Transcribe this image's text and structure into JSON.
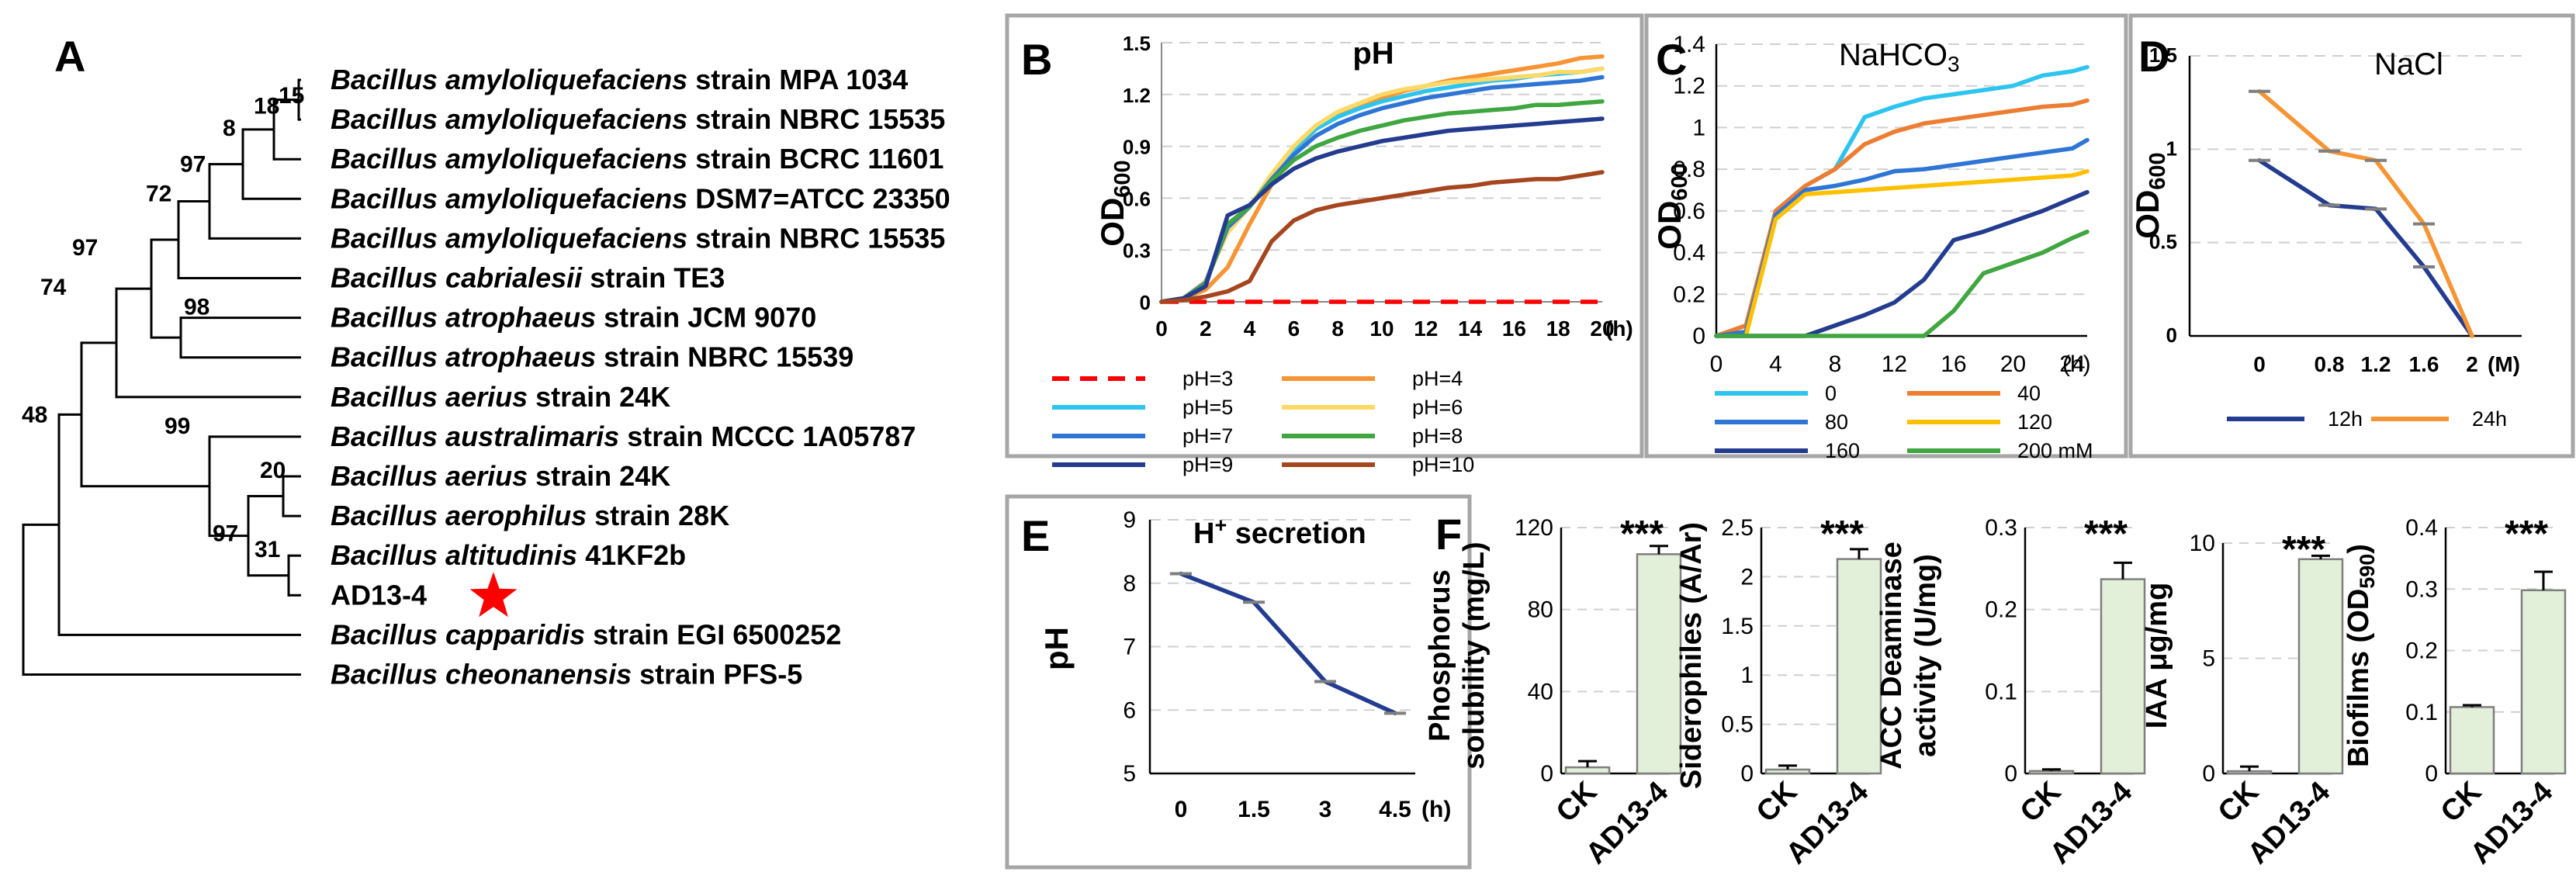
{
  "chart_data": [
    {
      "panel": "A",
      "type": "tree",
      "title": "Phylogenetic tree",
      "leaves": [
        {
          "italic": "Bacillus amyloliquefaciens",
          "rest": " strain MPA 1034"
        },
        {
          "italic": "Bacillus amyloliquefaciens",
          "rest": " strain NBRC 15535"
        },
        {
          "italic": "Bacillus amyloliquefaciens",
          "rest": " strain BCRC 11601"
        },
        {
          "italic": "Bacillus amyloliquefaciens",
          "rest": " DSM7=ATCC 23350"
        },
        {
          "italic": "Bacillus amyloliquefaciens",
          "rest": " strain NBRC 15535"
        },
        {
          "italic": "Bacillus cabrialesii",
          "rest": " strain TE3"
        },
        {
          "italic": "Bacillus atrophaeus",
          "rest": " strain JCM 9070"
        },
        {
          "italic": "Bacillus atrophaeus",
          "rest": " strain NBRC 15539"
        },
        {
          "italic": "Bacillus aerius",
          "rest": " strain 24K"
        },
        {
          "italic": "Bacillus australimaris",
          "rest": " strain MCCC 1A05787"
        },
        {
          "italic": "Bacillus aerius",
          "rest": " strain 24K"
        },
        {
          "italic": "Bacillus aerophilus",
          "rest": " strain 28K"
        },
        {
          "italic": "Bacillus altitudinis",
          "rest": " 41KF2b"
        },
        {
          "italic": "",
          "rest": "AD13-4"
        },
        {
          "italic": "Bacillus capparidis",
          "rest": " strain EGI 6500252"
        },
        {
          "italic": "Bacillus cheonanensis",
          "rest": " strain PFS-5"
        }
      ],
      "bootstrap": [
        "15",
        "18",
        "8",
        "97",
        "72",
        "98",
        "97",
        "74",
        "99",
        "20",
        "97",
        "31",
        "48"
      ],
      "highlight": "AD13-4",
      "highlight_color": "#ff0000"
    },
    {
      "panel": "B",
      "type": "line",
      "title": "pH",
      "ylabel": "OD",
      "ylabel_sub": "600",
      "xunit": "(h)",
      "xlim": [
        0,
        20
      ],
      "ylim": [
        0,
        1.5
      ],
      "xticks": [
        "0",
        "2",
        "4",
        "6",
        "8",
        "10",
        "12",
        "14",
        "16",
        "18",
        "20"
      ],
      "yticks": [
        "0",
        "0.3",
        "0.6",
        "0.9",
        "1.2",
        "1.5"
      ],
      "x": [
        0,
        1,
        2,
        3,
        4,
        5,
        6,
        7,
        8,
        9,
        10,
        11,
        12,
        13,
        14,
        15,
        16,
        17,
        18,
        19,
        20
      ],
      "series": [
        {
          "name": "pH=3",
          "color": "#ff0000",
          "dashed": true,
          "values": [
            0,
            0,
            0,
            0,
            0,
            0,
            0,
            0,
            0,
            0,
            0,
            0,
            0,
            0,
            0,
            0,
            0,
            0,
            0,
            0,
            0
          ]
        },
        {
          "name": "pH=4",
          "color": "#f79433",
          "values": [
            0,
            0.02,
            0.07,
            0.2,
            0.45,
            0.68,
            0.87,
            1.0,
            1.08,
            1.13,
            1.18,
            1.22,
            1.25,
            1.28,
            1.3,
            1.32,
            1.34,
            1.36,
            1.38,
            1.41,
            1.42
          ]
        },
        {
          "name": "pH=5",
          "color": "#2ec4f0",
          "values": [
            0,
            0.02,
            0.12,
            0.42,
            0.55,
            0.72,
            0.88,
            1.0,
            1.07,
            1.12,
            1.16,
            1.19,
            1.22,
            1.24,
            1.26,
            1.28,
            1.29,
            1.31,
            1.32,
            1.33,
            1.35
          ]
        },
        {
          "name": "pH=6",
          "color": "#ffd966",
          "values": [
            0,
            0.02,
            0.12,
            0.4,
            0.55,
            0.74,
            0.9,
            1.02,
            1.1,
            1.15,
            1.2,
            1.23,
            1.25,
            1.27,
            1.28,
            1.29,
            1.3,
            1.31,
            1.33,
            1.33,
            1.35
          ]
        },
        {
          "name": "pH=7",
          "color": "#2e75d6",
          "values": [
            0,
            0.02,
            0.11,
            0.43,
            0.55,
            0.71,
            0.85,
            0.96,
            1.03,
            1.08,
            1.12,
            1.15,
            1.18,
            1.2,
            1.22,
            1.24,
            1.25,
            1.26,
            1.27,
            1.28,
            1.3
          ]
        },
        {
          "name": "pH=8",
          "color": "#3fa640",
          "values": [
            0,
            0.02,
            0.1,
            0.45,
            0.55,
            0.7,
            0.82,
            0.9,
            0.95,
            0.99,
            1.02,
            1.05,
            1.07,
            1.09,
            1.1,
            1.11,
            1.12,
            1.14,
            1.14,
            1.15,
            1.16
          ]
        },
        {
          "name": "pH=9",
          "color": "#233c8f",
          "values": [
            0,
            0.02,
            0.09,
            0.5,
            0.56,
            0.68,
            0.77,
            0.83,
            0.87,
            0.9,
            0.93,
            0.95,
            0.97,
            0.99,
            1.0,
            1.01,
            1.02,
            1.03,
            1.04,
            1.05,
            1.06
          ]
        },
        {
          "name": "pH=10",
          "color": "#a6461e",
          "values": [
            0,
            0.01,
            0.03,
            0.06,
            0.12,
            0.35,
            0.47,
            0.53,
            0.56,
            0.58,
            0.6,
            0.62,
            0.64,
            0.66,
            0.67,
            0.69,
            0.7,
            0.71,
            0.71,
            0.73,
            0.75
          ]
        }
      ]
    },
    {
      "panel": "C",
      "type": "line",
      "title_main": "NaHCO",
      "title_sub": "3",
      "ylabel": "OD",
      "ylabel_sub": "600",
      "xunit": "(h)",
      "xlim": [
        0,
        25
      ],
      "ylim": [
        0,
        1.4
      ],
      "xticks": [
        [
          "0",
          0
        ],
        [
          "4",
          4
        ],
        [
          "8",
          8
        ],
        [
          "12",
          12
        ],
        [
          "16",
          16
        ],
        [
          "20",
          20
        ],
        [
          "24",
          24
        ]
      ],
      "yticks": [
        "0",
        "0.2",
        "0.4",
        "0.6",
        "0.8",
        "1",
        "1.2",
        "1.4"
      ],
      "x": [
        0,
        2,
        4,
        6,
        8,
        10,
        12,
        14,
        16,
        18,
        20,
        22,
        24,
        25
      ],
      "series": [
        {
          "name": "0",
          "color": "#2ec4f0",
          "values": [
            0,
            0.05,
            0.6,
            0.72,
            0.8,
            1.05,
            1.1,
            1.14,
            1.16,
            1.18,
            1.2,
            1.25,
            1.27,
            1.29
          ]
        },
        {
          "name": "40",
          "color": "#ed7d31",
          "values": [
            0,
            0.05,
            0.6,
            0.72,
            0.8,
            0.92,
            0.98,
            1.02,
            1.04,
            1.06,
            1.08,
            1.1,
            1.11,
            1.13
          ]
        },
        {
          "name": "80",
          "color": "#2e75d6",
          "values": [
            0,
            0.02,
            0.58,
            0.7,
            0.72,
            0.75,
            0.79,
            0.8,
            0.82,
            0.84,
            0.86,
            0.88,
            0.9,
            0.94
          ]
        },
        {
          "name": "120",
          "color": "#ffc000",
          "values": [
            0,
            0,
            0.56,
            0.68,
            0.69,
            0.7,
            0.71,
            0.72,
            0.73,
            0.74,
            0.75,
            0.76,
            0.77,
            0.79
          ]
        },
        {
          "name": "160",
          "color": "#233c8f",
          "values": [
            0,
            0,
            0,
            0,
            0.05,
            0.1,
            0.16,
            0.27,
            0.46,
            0.5,
            0.55,
            0.6,
            0.66,
            0.69
          ]
        },
        {
          "name": "200 mM",
          "color": "#3fa640",
          "values": [
            0,
            0,
            0,
            0,
            0,
            0,
            0,
            0,
            0.12,
            0.3,
            0.35,
            0.4,
            0.47,
            0.5
          ]
        }
      ]
    },
    {
      "panel": "D",
      "type": "line",
      "title": "NaCl",
      "ylabel": "OD",
      "ylabel_sub": "600",
      "xunit": "(M)",
      "xlim": [
        0,
        2
      ],
      "ylim": [
        0,
        1.5
      ],
      "xticks": [
        "0",
        "0.8",
        "1.2",
        "1.6",
        "2"
      ],
      "yticks": [
        "0",
        "0.5",
        "1",
        "1.5"
      ],
      "x": [
        0,
        0.8,
        1.2,
        1.6,
        2
      ],
      "series": [
        {
          "name": "12h",
          "color": "#233c8f",
          "values": [
            0.94,
            0.7,
            0.68,
            0.37,
            0
          ]
        },
        {
          "name": "24h",
          "color": "#f79433",
          "values": [
            1.31,
            0.99,
            0.94,
            0.6,
            0
          ]
        }
      ]
    },
    {
      "panel": "E",
      "type": "line",
      "title_main": "H",
      "title_sup": "+",
      "title_rest": " secretion",
      "ylabel": "pH",
      "xunit": "(h)",
      "ylim": [
        5,
        9
      ],
      "xticks": [
        "0",
        "1.5",
        "3",
        "4.5"
      ],
      "yticks": [
        "5",
        "6",
        "7",
        "8",
        "9"
      ],
      "x": [
        0,
        1.5,
        3,
        4.5
      ],
      "series": [
        {
          "name": "pH",
          "color": "#233c8f",
          "values": [
            8.15,
            7.7,
            6.45,
            5.95
          ]
        }
      ]
    },
    {
      "panel": "F",
      "type": "bar",
      "categories": [
        "CK",
        "AD13-4"
      ],
      "bar_color": "#e2f0d9",
      "significance": "***",
      "subplots": [
        {
          "ylabel_lines": [
            "Phosphorus",
            "solubility (mg/L)"
          ],
          "values": [
            3,
            107
          ],
          "errors": [
            3,
            4
          ],
          "ylim": [
            0,
            120
          ],
          "yticks": [
            "0",
            "40",
            "80",
            "120"
          ]
        },
        {
          "ylabel_lines": [
            "Siderophiles (A/Ar)"
          ],
          "values": [
            0.04,
            2.18
          ],
          "errors": [
            0.04,
            0.1
          ],
          "ylim": [
            0,
            2.5
          ],
          "yticks": [
            "0",
            "0.5",
            "1",
            "1.5",
            "2",
            "2.5"
          ]
        },
        {
          "ylabel_lines": [
            "ACC Deaminase",
            "activity (U/mg)"
          ],
          "values": [
            0.003,
            0.237
          ],
          "errors": [
            0.002,
            0.02
          ],
          "ylim": [
            0,
            0.3
          ],
          "yticks": [
            "0",
            "0.1",
            "0.2",
            "0.3"
          ]
        },
        {
          "ylabel_lines": [
            "IAA μg/mg"
          ],
          "values": [
            0.1,
            9.3
          ],
          "errors": [
            0.2,
            0.15
          ],
          "ylim": [
            0,
            10
          ],
          "yticks": [
            "0",
            "5",
            "10"
          ]
        },
        {
          "ylabel_lines": [
            "Biofilms (OD",
            "590",
            ")"
          ],
          "values": [
            0.108,
            0.298
          ],
          "errors": [
            0.003,
            0.03
          ],
          "ylim": [
            0,
            0.4
          ],
          "yticks": [
            "0",
            "0.1",
            "0.2",
            "0.3",
            "0.4"
          ]
        }
      ]
    }
  ],
  "panel_labels": [
    "A",
    "B",
    "C",
    "D",
    "E",
    "F"
  ],
  "grid_color": "#d0d0d0",
  "box_color": "#a6a6a6"
}
